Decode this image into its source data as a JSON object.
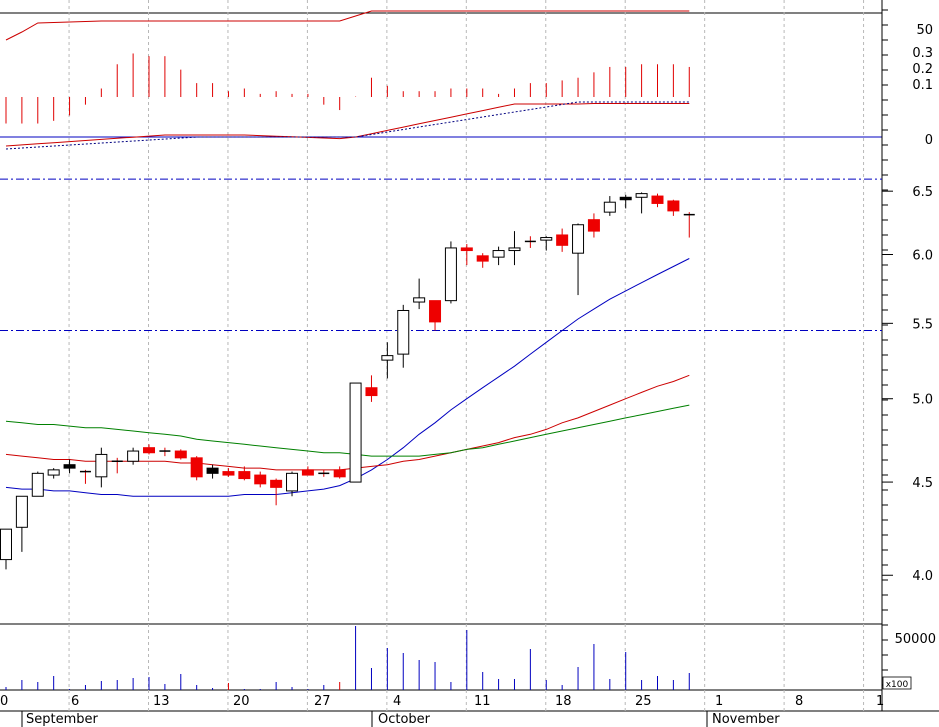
{
  "chart_data": {
    "type": "candlestick",
    "months": [
      "September",
      "October",
      "November"
    ],
    "x_ticks": [
      "0",
      "6",
      "13",
      "20",
      "27",
      "4",
      "11",
      "18",
      "25",
      "1",
      "8",
      "1"
    ],
    "price_axis": {
      "scale": "log",
      "ticks": [
        "4.0",
        "4.5",
        "5.0",
        "5.5",
        "6.0",
        "6.5"
      ],
      "ylim": [
        3.78,
        6.83
      ],
      "reference_lines": [
        6.6,
        5.45
      ]
    },
    "candles": [
      {
        "o": 4.08,
        "h": 4.24,
        "l": 4.03,
        "c": 4.24,
        "up": true
      },
      {
        "o": 4.25,
        "h": 4.42,
        "l": 4.12,
        "c": 4.42,
        "up": true
      },
      {
        "o": 4.42,
        "h": 4.56,
        "l": 4.42,
        "c": 4.55,
        "up": true
      },
      {
        "o": 4.54,
        "h": 4.58,
        "l": 4.52,
        "c": 4.57,
        "up": true
      },
      {
        "o": 4.6,
        "h": 4.63,
        "l": 4.55,
        "c": 4.58,
        "dark": true
      },
      {
        "o": 4.56,
        "h": 4.57,
        "l": 4.49,
        "c": 4.56,
        "doji": true
      },
      {
        "o": 4.53,
        "h": 4.7,
        "l": 4.47,
        "c": 4.66,
        "up": true
      },
      {
        "o": 4.62,
        "h": 4.64,
        "l": 4.55,
        "c": 4.62,
        "doji": true
      },
      {
        "o": 4.62,
        "h": 4.7,
        "l": 4.6,
        "c": 4.68,
        "up": true
      },
      {
        "o": 4.7,
        "h": 4.72,
        "l": 4.66,
        "c": 4.67
      },
      {
        "o": 4.68,
        "h": 4.7,
        "l": 4.65,
        "c": 4.66,
        "doji": true
      },
      {
        "o": 4.68,
        "h": 4.69,
        "l": 4.63,
        "c": 4.64
      },
      {
        "o": 4.64,
        "h": 4.65,
        "l": 4.51,
        "c": 4.53
      },
      {
        "o": 4.58,
        "h": 4.6,
        "l": 4.52,
        "c": 4.55,
        "dark": true
      },
      {
        "o": 4.56,
        "h": 4.58,
        "l": 4.53,
        "c": 4.54
      },
      {
        "o": 4.56,
        "h": 4.59,
        "l": 4.51,
        "c": 4.52
      },
      {
        "o": 4.54,
        "h": 4.56,
        "l": 4.47,
        "c": 4.49
      },
      {
        "o": 4.51,
        "h": 4.52,
        "l": 4.37,
        "c": 4.47
      },
      {
        "o": 4.45,
        "h": 4.56,
        "l": 4.42,
        "c": 4.55,
        "up": true
      },
      {
        "o": 4.57,
        "h": 4.59,
        "l": 4.54,
        "c": 4.54
      },
      {
        "o": 4.55,
        "h": 4.57,
        "l": 4.53,
        "c": 4.55,
        "doji": true
      },
      {
        "o": 4.57,
        "h": 4.59,
        "l": 4.52,
        "c": 4.53
      },
      {
        "o": 4.5,
        "h": 5.1,
        "l": 4.5,
        "c": 5.1,
        "up": true
      },
      {
        "o": 5.07,
        "h": 5.15,
        "l": 4.98,
        "c": 5.02
      },
      {
        "o": 5.25,
        "h": 5.37,
        "l": 5.13,
        "c": 5.28,
        "up": true
      },
      {
        "o": 5.29,
        "h": 5.63,
        "l": 5.2,
        "c": 5.59,
        "up": true
      },
      {
        "o": 5.65,
        "h": 5.82,
        "l": 5.6,
        "c": 5.68,
        "up": true
      },
      {
        "o": 5.66,
        "h": 5.66,
        "l": 5.45,
        "c": 5.51
      },
      {
        "o": 5.66,
        "h": 6.1,
        "l": 5.64,
        "c": 6.05,
        "up": true
      },
      {
        "o": 6.05,
        "h": 6.08,
        "l": 5.92,
        "c": 6.03
      },
      {
        "o": 5.99,
        "h": 6.01,
        "l": 5.9,
        "c": 5.95
      },
      {
        "o": 5.98,
        "h": 6.06,
        "l": 5.92,
        "c": 6.03,
        "up": true
      },
      {
        "o": 6.03,
        "h": 6.18,
        "l": 5.92,
        "c": 6.05,
        "up": true
      },
      {
        "o": 6.1,
        "h": 6.14,
        "l": 6.05,
        "c": 6.1,
        "doji": true
      },
      {
        "o": 6.11,
        "h": 6.14,
        "l": 6.03,
        "c": 6.13,
        "up": true
      },
      {
        "o": 6.15,
        "h": 6.2,
        "l": 6.02,
        "c": 6.07
      },
      {
        "o": 6.01,
        "h": 6.24,
        "l": 5.7,
        "c": 6.23,
        "up": true
      },
      {
        "o": 6.27,
        "h": 6.32,
        "l": 6.13,
        "c": 6.18
      },
      {
        "o": 6.33,
        "h": 6.46,
        "l": 6.3,
        "c": 6.41,
        "up": true
      },
      {
        "o": 6.45,
        "h": 6.47,
        "l": 6.36,
        "c": 6.43,
        "dark": true
      },
      {
        "o": 6.45,
        "h": 6.49,
        "l": 6.32,
        "c": 6.48,
        "up": true
      },
      {
        "o": 6.46,
        "h": 6.48,
        "l": 6.37,
        "c": 6.4
      },
      {
        "o": 6.42,
        "h": 6.43,
        "l": 6.3,
        "c": 6.34
      },
      {
        "o": 6.31,
        "h": 6.33,
        "l": 6.13,
        "c": 6.31,
        "doji": true
      }
    ],
    "moving_averages": [
      {
        "color": "#0000c0",
        "values": [
          4.47,
          4.46,
          4.46,
          4.45,
          4.45,
          4.44,
          4.43,
          4.43,
          4.42,
          4.42,
          4.42,
          4.42,
          4.42,
          4.42,
          4.42,
          4.43,
          4.43,
          4.43,
          4.44,
          4.45,
          4.46,
          4.48,
          4.52,
          4.57,
          4.63,
          4.7,
          4.78,
          4.85,
          4.93,
          5.0,
          5.07,
          5.14,
          5.21,
          5.29,
          5.37,
          5.45,
          5.53,
          5.6,
          5.67,
          5.73,
          5.79,
          5.85,
          5.91,
          5.97
        ]
      },
      {
        "color": "#cc0000",
        "values": [
          4.66,
          4.65,
          4.64,
          4.63,
          4.63,
          4.62,
          4.62,
          4.62,
          4.62,
          4.62,
          4.62,
          4.61,
          4.61,
          4.6,
          4.59,
          4.58,
          4.58,
          4.57,
          4.57,
          4.57,
          4.57,
          4.57,
          4.58,
          4.59,
          4.6,
          4.62,
          4.63,
          4.65,
          4.67,
          4.69,
          4.71,
          4.73,
          4.76,
          4.78,
          4.81,
          4.85,
          4.88,
          4.92,
          4.96,
          5.0,
          5.04,
          5.08,
          5.11,
          5.15
        ]
      },
      {
        "color": "#008000",
        "values": [
          4.86,
          4.85,
          4.84,
          4.84,
          4.83,
          4.82,
          4.82,
          4.81,
          4.8,
          4.79,
          4.78,
          4.77,
          4.75,
          4.74,
          4.73,
          4.72,
          4.71,
          4.7,
          4.69,
          4.68,
          4.67,
          4.67,
          4.66,
          4.65,
          4.65,
          4.65,
          4.65,
          4.66,
          4.67,
          4.69,
          4.7,
          4.72,
          4.74,
          4.76,
          4.78,
          4.8,
          4.82,
          4.84,
          4.86,
          4.88,
          4.9,
          4.92,
          4.94,
          4.96
        ]
      }
    ],
    "indicator_axis": {
      "ticks": [
        "0.3",
        "0.2",
        "0.1",
        "0"
      ],
      "top_tick": "50"
    },
    "indicator_bars": [
      0.05,
      0.05,
      0.05,
      0.06,
      0.08,
      0.12,
      0.18,
      0.27,
      0.31,
      0.3,
      0.3,
      0.25,
      0.2,
      0.2,
      0.17,
      0.18,
      0.16,
      0.17,
      0.16,
      0.16,
      0.12,
      0.1,
      0.15,
      0.22,
      0.19,
      0.17,
      0.17,
      0.17,
      0.18,
      0.18,
      0.18,
      0.16,
      0.18,
      0.2,
      0.2,
      0.21,
      0.22,
      0.24,
      0.26,
      0.26,
      0.27,
      0.27,
      0.27,
      0.26
    ],
    "volume_axis": {
      "tick": "50000",
      "unit": "x100"
    },
    "volume": [
      3,
      10,
      8,
      14,
      1,
      5,
      9,
      10,
      12,
      13,
      6,
      16,
      5,
      2,
      7,
      1,
      1,
      8,
      3,
      1,
      5,
      8,
      64,
      22,
      42,
      37,
      30,
      28,
      8,
      60,
      18,
      11,
      11,
      41,
      10,
      5,
      23,
      46,
      11,
      38,
      10,
      14,
      10,
      17
    ]
  }
}
